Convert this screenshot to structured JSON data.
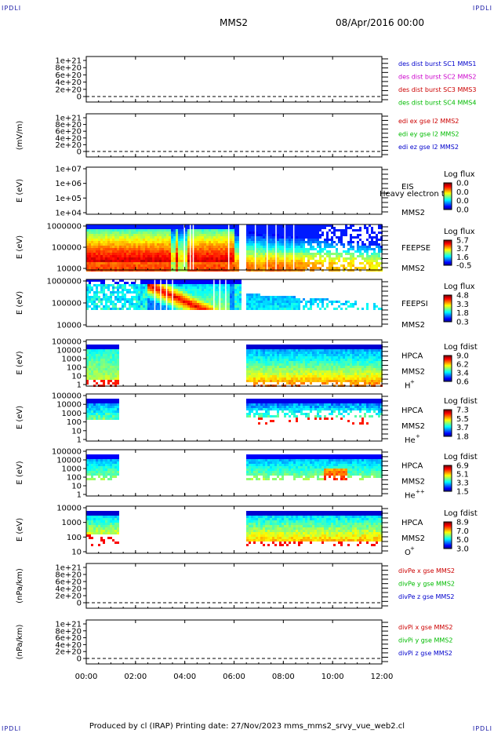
{
  "page": {
    "corner_label": "IPDLI",
    "title": "MMS2",
    "datetime": "08/Apr/2016 00:00",
    "footer": "Produced by cl (IRAP)   Printing date: 27/Nov/2023   mms_mms2_srvy_vue_web2.cl"
  },
  "chart_data": [
    {
      "type": "line",
      "ylabel": "",
      "yticks": [
        "1e+21",
        "8e+20",
        "6e+20",
        "4e+20",
        "2e+20",
        "0"
      ],
      "legend": [
        {
          "text": "des dist burst SC1 MMS1",
          "color": "#0000cc"
        },
        {
          "text": "des dist burst SC2 MMS2",
          "color": "#cc00cc"
        },
        {
          "text": "des dist burst SC3 MMS3",
          "color": "#cc0000"
        },
        {
          "text": "des dist burst SC4 MMS4",
          "color": "#00bb00"
        }
      ]
    },
    {
      "type": "line",
      "ylabel": "(mV/m)",
      "yticks": [
        "1e+21",
        "8e+20",
        "6e+20",
        "4e+20",
        "2e+20",
        "0"
      ],
      "legend": [
        {
          "text": "edi ex gse l2 MMS2",
          "color": "#cc0000"
        },
        {
          "text": "edi ey gse l2 MMS2",
          "color": "#00bb00"
        },
        {
          "text": "edi ez gse l2 MMS2",
          "color": "#0000cc"
        }
      ]
    },
    {
      "type": "heatmap",
      "ylabel": "E (eV)",
      "yticks": [
        "1e+07",
        "1e+06",
        "1e+05",
        "1e+04"
      ],
      "instrument": "EIS",
      "overlay": "Heavy electron to",
      "sc": "MMS2",
      "cbar_title": "Log flux",
      "cbar_ticks": [
        "0.0",
        "0.0",
        "0.0",
        "0.0"
      ]
    },
    {
      "type": "heatmap",
      "ylabel": "E (eV)",
      "yticks": [
        "1000000",
        "100000",
        "10000"
      ],
      "instrument": "FEEPSE",
      "sc": "MMS2",
      "cbar_title": "Log flux",
      "cbar_ticks": [
        "5.7",
        "3.7",
        "1.6",
        "-0.5"
      ]
    },
    {
      "type": "heatmap",
      "ylabel": "E (eV)",
      "yticks": [
        "1000000",
        "100000",
        "10000"
      ],
      "instrument": "FEEPSI",
      "sc": "MMS2",
      "cbar_title": "Log flux",
      "cbar_ticks": [
        "4.8",
        "3.3",
        "1.8",
        "0.3"
      ]
    },
    {
      "type": "heatmap",
      "ylabel": "E (eV)",
      "yticks": [
        "100000",
        "10000",
        "1000",
        "100",
        "10",
        "1"
      ],
      "instrument": "HPCA",
      "sc": "MMS2",
      "species": "H",
      "species_sup": "+",
      "cbar_title": "Log fdist",
      "cbar_ticks": [
        "9.0",
        "6.2",
        "3.4",
        "0.6"
      ]
    },
    {
      "type": "heatmap",
      "ylabel": "E (eV)",
      "yticks": [
        "100000",
        "10000",
        "1000",
        "100",
        "10",
        "1"
      ],
      "instrument": "HPCA",
      "sc": "MMS2",
      "species": "He",
      "species_sup": "+",
      "cbar_title": "Log fdist",
      "cbar_ticks": [
        "7.3",
        "5.5",
        "3.7",
        "1.8"
      ]
    },
    {
      "type": "heatmap",
      "ylabel": "E (eV)",
      "yticks": [
        "100000",
        "10000",
        "1000",
        "100",
        "10",
        "1"
      ],
      "instrument": "HPCA",
      "sc": "MMS2",
      "species": "He",
      "species_sup": "++",
      "cbar_title": "Log fdist",
      "cbar_ticks": [
        "6.9",
        "5.1",
        "3.3",
        "1.5"
      ]
    },
    {
      "type": "heatmap",
      "ylabel": "E (eV)",
      "yticks": [
        "10000",
        "1000",
        "100",
        "10"
      ],
      "instrument": "HPCA",
      "sc": "MMS2",
      "species": "O",
      "species_sup": "+",
      "cbar_title": "Log fdist",
      "cbar_ticks": [
        "8.9",
        "7.0",
        "5.0",
        "3.0"
      ]
    },
    {
      "type": "line",
      "ylabel": "(nPa/km)",
      "yticks": [
        "1e+21",
        "8e+20",
        "6e+20",
        "4e+20",
        "2e+20",
        "0"
      ],
      "legend": [
        {
          "text": "divPe x gse MMS2",
          "color": "#cc0000"
        },
        {
          "text": "divPe y gse MMS2",
          "color": "#00bb00"
        },
        {
          "text": "divPe z gse MMS2",
          "color": "#0000cc"
        }
      ]
    },
    {
      "type": "line",
      "ylabel": "(nPa/km)",
      "yticks": [
        "1e+21",
        "8e+20",
        "6e+20",
        "4e+20",
        "2e+20",
        "0"
      ],
      "legend": [
        {
          "text": "divPi x gse MMS2",
          "color": "#cc0000"
        },
        {
          "text": "divPi y gse MMS2",
          "color": "#00bb00"
        },
        {
          "text": "divPi z gse MMS2",
          "color": "#0000cc"
        }
      ]
    }
  ],
  "time_axis": {
    "labels": [
      "00:00",
      "02:00",
      "04:00",
      "06:00",
      "08:00",
      "10:00",
      "12:00"
    ]
  }
}
